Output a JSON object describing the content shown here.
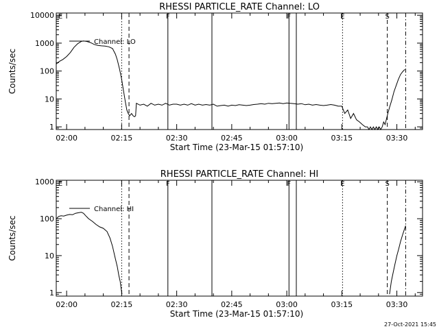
{
  "footer_timestamp": "27-Oct-2021 15:45",
  "chart_data": [
    {
      "type": "line",
      "title": "RHESSI PARTICLE_RATE Channel: LO",
      "xlabel": "Start Time (23-Mar-15 01:57:10)",
      "ylabel": "Counts/sec",
      "yscale": "log",
      "ylim": [
        0.8,
        12000
      ],
      "yticks": [
        1,
        10,
        100,
        1000,
        10000
      ],
      "ytick_labels": [
        "1",
        "10",
        "100",
        "1000",
        "10000"
      ],
      "xlim_minutes": [
        117.17,
        217.0
      ],
      "xticks_minutes": [
        120,
        135,
        150,
        165,
        180,
        195,
        210
      ],
      "xtick_labels": [
        "02:00",
        "02:15",
        "02:30",
        "02:45",
        "03:00",
        "03:15",
        "03:30"
      ],
      "legend": {
        "label": "Channel: LO",
        "position": "top-left"
      },
      "markers": [
        {
          "t": 118.3,
          "style": "none",
          "label": "E"
        },
        {
          "t": 135.0,
          "style": "dotted",
          "label": ""
        },
        {
          "t": 137.0,
          "style": "dashed",
          "label": ""
        },
        {
          "t": 147.6,
          "style": "solid",
          "label": "F"
        },
        {
          "t": 159.6,
          "style": "solid",
          "label": ""
        },
        {
          "t": 180.6,
          "style": "solid",
          "label": "F"
        },
        {
          "t": 182.6,
          "style": "solid",
          "label": ""
        },
        {
          "t": 195.2,
          "style": "dotted",
          "label": "E"
        },
        {
          "t": 207.4,
          "style": "dashed",
          "label": "S"
        },
        {
          "t": 212.4,
          "style": "dashdot",
          "label": ""
        }
      ],
      "series": [
        {
          "name": "Channel: LO",
          "t": [
            117.2,
            118.0,
            119.0,
            120.0,
            121.0,
            122.0,
            123.0,
            124.0,
            124.6,
            125.5,
            126.5,
            127.5,
            128.5,
            129.5,
            130.5,
            131.5,
            132.5,
            133.3,
            133.8,
            134.4,
            135.0,
            135.5,
            136.0,
            136.4,
            136.8,
            137.2,
            137.7,
            138.1,
            138.5,
            138.8,
            139.0,
            140.0,
            141.0,
            142.0,
            143.0,
            144.0,
            145.0,
            146.0,
            147.0,
            148.0,
            149.0,
            150.0,
            151.0,
            152.0,
            153.0,
            154.0,
            155.0,
            156.0,
            157.0,
            158.0,
            159.0,
            160.0,
            161.0,
            162.0,
            163.0,
            164.0,
            165.0,
            166.0,
            167.0,
            168.0,
            169.0,
            170.0,
            171.0,
            172.0,
            173.0,
            174.0,
            175.0,
            176.0,
            177.0,
            178.0,
            179.0,
            180.0,
            181.0,
            182.0,
            183.0,
            184.0,
            185.0,
            186.0,
            187.0,
            188.0,
            189.0,
            190.0,
            191.0,
            192.0,
            193.0,
            194.0,
            195.0,
            195.8,
            196.6,
            197.4,
            198.2,
            199.0,
            199.8,
            200.6,
            201.4,
            202.0,
            202.4,
            202.8,
            203.2,
            203.6,
            204.0,
            204.4,
            204.8,
            205.2,
            205.6,
            206.0,
            206.4,
            206.8,
            207.2,
            207.6,
            208.0,
            208.6,
            209.2,
            209.8,
            210.4,
            211.0,
            211.6,
            212.2
          ],
          "values": [
            180,
            220,
            260,
            330,
            460,
            700,
            950,
            1150,
            1200,
            1150,
            1050,
            900,
            830,
            800,
            780,
            740,
            640,
            400,
            250,
            120,
            50,
            20,
            8,
            4,
            3,
            2.5,
            3,
            2.5,
            2.3,
            2.5,
            7,
            6,
            6.5,
            5.5,
            7,
            6,
            6.5,
            6,
            7,
            6,
            6.5,
            6.5,
            6,
            6.5,
            6,
            6.8,
            6,
            6.5,
            6,
            6.3,
            6,
            6.5,
            5.5,
            5.8,
            6,
            5.5,
            6,
            5.8,
            6.2,
            6,
            5.8,
            6,
            6.3,
            6.5,
            6.8,
            6.5,
            7,
            6.8,
            7,
            7.2,
            6.8,
            7.2,
            7,
            6.8,
            6.5,
            6.8,
            6.2,
            6.5,
            6,
            6.3,
            6,
            5.8,
            6,
            6.3,
            6,
            5.5,
            5.5,
            3,
            4,
            2,
            3,
            1.8,
            1.5,
            1.2,
            1,
            1,
            0.8,
            1,
            0.8,
            1,
            0.8,
            1,
            0.8,
            1,
            0.8,
            1,
            1.5,
            1.2,
            2,
            3.2,
            5,
            9,
            18,
            30,
            50,
            75,
            95,
            115
          ]
        }
      ]
    },
    {
      "type": "line",
      "title": "RHESSI PARTICLE_RATE Channel: HI",
      "xlabel": "Start Time (23-Mar-15 01:57:10)",
      "ylabel": "Counts/sec",
      "yscale": "log",
      "ylim": [
        0.8,
        1100
      ],
      "yticks": [
        1,
        10,
        100,
        1000
      ],
      "ytick_labels": [
        "1",
        "10",
        "100",
        "1000"
      ],
      "xlim_minutes": [
        117.17,
        217.0
      ],
      "xticks_minutes": [
        120,
        135,
        150,
        165,
        180,
        195,
        210
      ],
      "xtick_labels": [
        "02:00",
        "02:15",
        "02:30",
        "02:45",
        "03:00",
        "03:15",
        "03:30"
      ],
      "legend": {
        "label": "Channel: HI",
        "position": "top-left"
      },
      "markers": [
        {
          "t": 118.3,
          "style": "none",
          "label": "E"
        },
        {
          "t": 135.0,
          "style": "dotted",
          "label": ""
        },
        {
          "t": 137.0,
          "style": "dashed",
          "label": ""
        },
        {
          "t": 147.6,
          "style": "solid",
          "label": "F"
        },
        {
          "t": 159.6,
          "style": "solid",
          "label": ""
        },
        {
          "t": 180.6,
          "style": "solid",
          "label": "F"
        },
        {
          "t": 182.6,
          "style": "solid",
          "label": ""
        },
        {
          "t": 195.2,
          "style": "dotted",
          "label": "E"
        },
        {
          "t": 207.4,
          "style": "dashed",
          "label": "S"
        },
        {
          "t": 212.4,
          "style": "dashdot",
          "label": ""
        }
      ],
      "series": [
        {
          "name": "Channel: HI",
          "t": [
            117.2,
            117.8,
            118.5,
            119.2,
            120.0,
            120.8,
            121.6,
            122.4,
            123.2,
            124.0,
            124.6,
            125.2,
            126.0,
            127.0,
            128.0,
            129.0,
            130.0,
            131.0,
            131.8,
            132.5,
            133.2,
            133.8,
            134.2,
            134.6,
            134.9,
            135.1,
            208.0,
            208.5,
            209.0,
            209.5,
            210.0,
            210.5,
            211.0,
            211.5,
            212.0,
            212.4
          ],
          "values": [
            100,
            115,
            120,
            118,
            125,
            130,
            128,
            140,
            145,
            150,
            140,
            120,
            100,
            85,
            70,
            60,
            55,
            45,
            30,
            18,
            9,
            5,
            3,
            2,
            1.2,
            0.9,
            0.9,
            2,
            3.5,
            6,
            10,
            15,
            24,
            35,
            50,
            65
          ]
        }
      ]
    }
  ]
}
